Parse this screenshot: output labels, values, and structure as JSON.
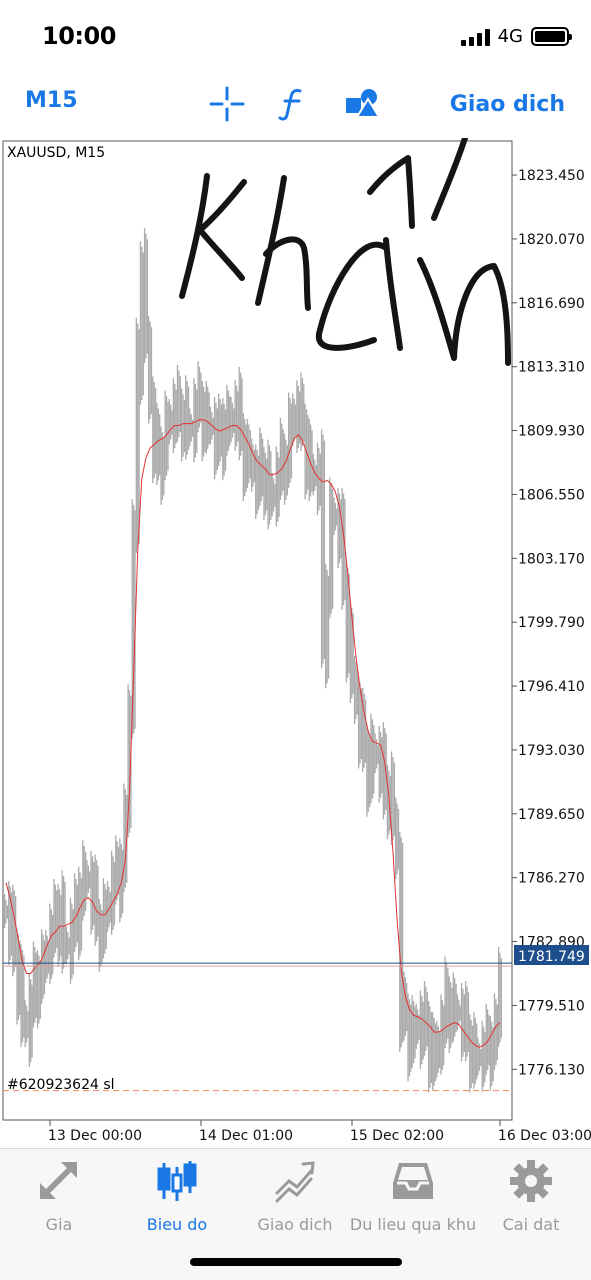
{
  "status_bar": {
    "time": "10:00",
    "network": "4G"
  },
  "toolbar": {
    "timeframe": "M15",
    "trade_label": "Giao dich",
    "icons": [
      "crosshair-icon",
      "function-icon",
      "shapes-icon"
    ]
  },
  "chart": {
    "symbol_label": "XAUUSD, M15",
    "order_label": "#620923624 sl",
    "current_price": "1781.749",
    "annotation": "Khẩn",
    "colors": {
      "candles": "#aaaaaa",
      "ma_line": "#e53030",
      "price_line": "#1f4e8c",
      "order_line": "#f08a55"
    }
  },
  "chart_data": {
    "type": "line",
    "title": "XAUUSD, M15",
    "y_ticks": [
      "1823.450",
      "1820.070",
      "1816.690",
      "1813.310",
      "1809.930",
      "1806.550",
      "1803.170",
      "1799.790",
      "1796.410",
      "1793.030",
      "1789.650",
      "1786.270",
      "1782.890",
      "1779.510",
      "1776.130"
    ],
    "x_ticks": [
      "13 Dec 00:00",
      "14 Dec 01:00",
      "15 Dec 02:00",
      "16 Dec 03:00"
    ],
    "ylim": [
      1773.5,
      1825.2
    ],
    "current_price": 1781.749,
    "stop_loss": 1775.0,
    "series": [
      {
        "name": "Close",
        "values": [
          1784.5,
          1783.6,
          1782.3,
          1780.8,
          1778.9,
          1778.2,
          1779.6,
          1780.6,
          1781.2,
          1781.6,
          1782.6,
          1783.3,
          1783.9,
          1784.7,
          1782.8,
          1782.6,
          1783.6,
          1784.2,
          1785.6,
          1786.3,
          1786.1,
          1785.2,
          1783.9,
          1783.6,
          1784.3,
          1785.2,
          1786.1,
          1786.2,
          1787.1,
          1789.3,
          1795.6,
          1804.7,
          1813.6,
          1818.7,
          1815.1,
          1811.2,
          1809.1,
          1808.3,
          1808.9,
          1810.1,
          1810.7,
          1811.1,
          1810.6,
          1810.9,
          1810.0,
          1810.2,
          1811.1,
          1811.3,
          1810.6,
          1810.3,
          1810.1,
          1809.3,
          1809.6,
          1810.4,
          1810.2,
          1810.8,
          1811.0,
          1809.6,
          1808.5,
          1808.6,
          1807.6,
          1807.2,
          1807.8,
          1807.5,
          1806.3,
          1806.8,
          1807.5,
          1808.3,
          1808.5,
          1810.0,
          1811.0,
          1810.7,
          1810.1,
          1808.6,
          1807.8,
          1807.4,
          1807.7,
          1798.6,
          1801.6,
          1805.5,
          1805.3,
          1804.6,
          1801.7,
          1798.9,
          1797.1,
          1795.3,
          1794.0,
          1793.1,
          1791.8,
          1793.0,
          1792.7,
          1792.2,
          1790.6,
          1791.0,
          1789.6,
          1787.1,
          1779.0,
          1778.9,
          1777.8,
          1778.1,
          1778.7,
          1778.1,
          1778.5,
          1777.2,
          1776.6,
          1777.8,
          1778.5,
          1779.8,
          1779.3,
          1779.2,
          1779.1,
          1778.5,
          1777.8,
          1777.2,
          1776.7,
          1776.9,
          1777.1,
          1777.3,
          1777.7,
          1778.2,
          1781.7
        ]
      },
      {
        "name": "Moving Average",
        "values": [
          1786.0,
          1785.2,
          1784.2,
          1783.0,
          1781.8,
          1781.2,
          1781.2,
          1781.5,
          1781.7,
          1782.1,
          1782.7,
          1783.2,
          1783.4,
          1783.7,
          1783.7,
          1783.8,
          1783.9,
          1784.2,
          1784.7,
          1785.1,
          1785.2,
          1785.0,
          1784.5,
          1784.3,
          1784.3,
          1784.6,
          1785.0,
          1785.4,
          1786.0,
          1787.2,
          1790.8,
          1797.0,
          1803.5,
          1807.4,
          1808.5,
          1809.0,
          1809.2,
          1809.4,
          1809.5,
          1809.7,
          1810.0,
          1810.2,
          1810.2,
          1810.3,
          1810.3,
          1810.3,
          1810.4,
          1810.5,
          1810.5,
          1810.4,
          1810.2,
          1810.0,
          1809.9,
          1810.0,
          1810.1,
          1810.2,
          1810.2,
          1810.0,
          1809.6,
          1809.2,
          1808.7,
          1808.3,
          1808.1,
          1807.9,
          1807.6,
          1807.6,
          1807.7,
          1807.9,
          1808.3,
          1808.9,
          1809.5,
          1809.7,
          1809.4,
          1808.8,
          1808.2,
          1807.7,
          1807.4,
          1807.2,
          1807.3,
          1807.1,
          1806.7,
          1805.9,
          1804.4,
          1802.4,
          1800.1,
          1798.0,
          1796.3,
          1795.0,
          1794.0,
          1793.5,
          1793.4,
          1793.3,
          1792.4,
          1790.6,
          1787.6,
          1784.0,
          1781.4,
          1780.0,
          1779.3,
          1779.0,
          1778.9,
          1778.8,
          1778.6,
          1778.4,
          1778.1,
          1778.1,
          1778.2,
          1778.4,
          1778.5,
          1778.6,
          1778.5,
          1778.2,
          1777.9,
          1777.6,
          1777.4,
          1777.3,
          1777.4,
          1777.6,
          1778.0,
          1778.4,
          1778.6
        ]
      }
    ]
  },
  "tabs": [
    {
      "label": "Gia",
      "icon": "quotes-arrows-icon",
      "active": false
    },
    {
      "label": "Bieu do",
      "icon": "candlestick-icon",
      "active": true
    },
    {
      "label": "Giao dich",
      "icon": "trend-chart-icon",
      "active": false
    },
    {
      "label": "Du lieu qua khu",
      "icon": "inbox-tray-icon",
      "active": false
    },
    {
      "label": "Cai dat",
      "icon": "gear-icon",
      "active": false
    }
  ]
}
